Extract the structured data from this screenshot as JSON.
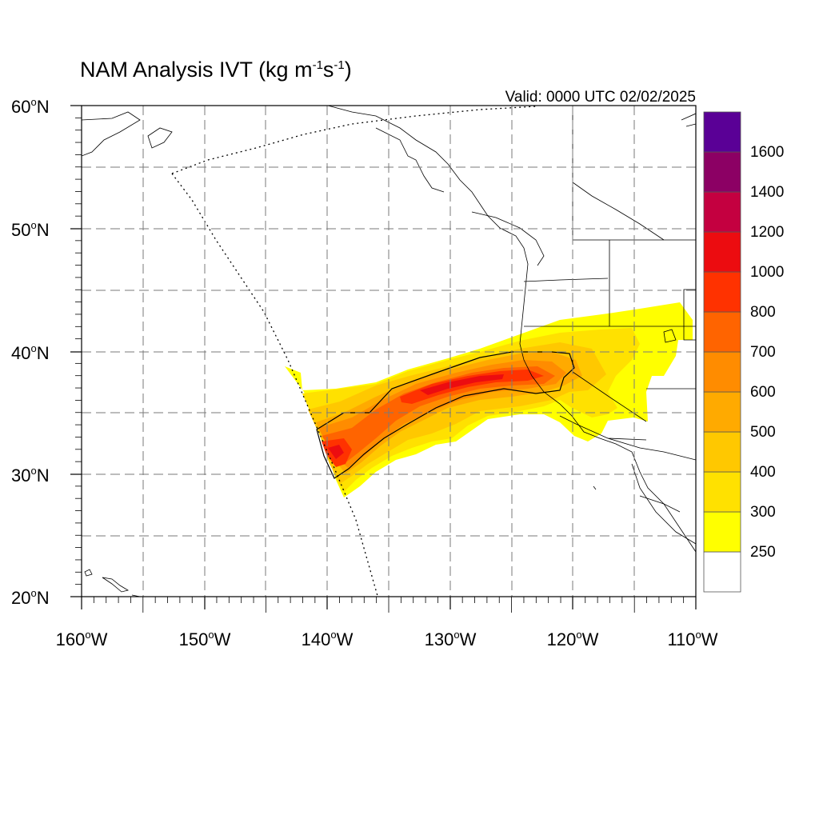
{
  "title": {
    "main": "NAM Analysis IVT (kg m",
    "exp1": "-1",
    "mid": "s",
    "exp2": "-1",
    "end": ")"
  },
  "valid": "Valid: 0000 UTC 02/02/2025",
  "lat_labels": [
    {
      "num": "60",
      "suffix": "N"
    },
    {
      "num": "50",
      "suffix": "N"
    },
    {
      "num": "40",
      "suffix": "N"
    },
    {
      "num": "30",
      "suffix": "N"
    },
    {
      "num": "20",
      "suffix": "N"
    }
  ],
  "lon_labels": [
    {
      "num": "160",
      "suffix": "W"
    },
    {
      "num": "150",
      "suffix": "W"
    },
    {
      "num": "140",
      "suffix": "W"
    },
    {
      "num": "130",
      "suffix": "W"
    },
    {
      "num": "120",
      "suffix": "W"
    },
    {
      "num": "110",
      "suffix": "W"
    }
  ],
  "colorbar": {
    "labels": [
      "1600",
      "1400",
      "1200",
      "1000",
      "800",
      "700",
      "600",
      "500",
      "400",
      "300",
      "250"
    ],
    "colors": [
      "#ffffff",
      "#ffff00",
      "#ffe100",
      "#ffc800",
      "#ffaa00",
      "#ff8c00",
      "#ff6400",
      "#ff3200",
      "#ec0c10",
      "#c40040",
      "#8c0064",
      "#5a0096"
    ]
  },
  "map": {
    "lat_range": [
      20,
      60
    ],
    "lon_range": [
      -160,
      -110
    ],
    "grid": "dashed 5 degree"
  }
}
